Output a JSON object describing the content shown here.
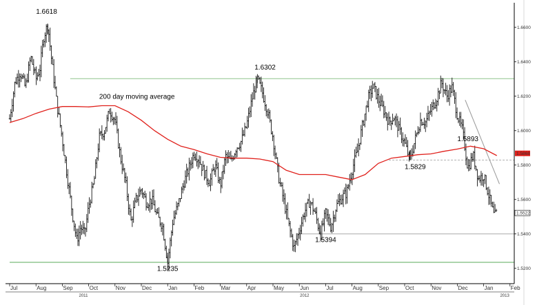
{
  "chart_data": {
    "type": "line",
    "title": "",
    "xlabel": "",
    "ylabel": "",
    "ylim": [
      1.5135,
      1.6735
    ],
    "grid": false,
    "y_ticks": [
      {
        "value": 1.66,
        "label": "1.6600"
      },
      {
        "value": 1.64,
        "label": "1.6400"
      },
      {
        "value": 1.62,
        "label": "1.6200"
      },
      {
        "value": 1.6,
        "label": "1.6000"
      },
      {
        "value": 1.58,
        "label": "1.5800"
      },
      {
        "value": 1.56,
        "label": "1.5600"
      },
      {
        "value": 1.54,
        "label": "1.5400"
      },
      {
        "value": 1.52,
        "label": "1.5200"
      }
    ],
    "months": [
      "Jul",
      "Aug",
      "Sep",
      "Oct",
      "Nov",
      "Dec",
      "Jan",
      "Feb",
      "Mar",
      "Apr",
      "May",
      "Jun",
      "Jul",
      "Aug",
      "Sep",
      "Oct",
      "Nov",
      "Dec",
      "Jan",
      "Feb"
    ],
    "years": [
      {
        "label": "2011",
        "month_index": 2.8
      },
      {
        "label": "2012",
        "month_index": 11.2
      },
      {
        "label": "2013",
        "month_index": 18.8
      }
    ],
    "series": [
      {
        "name": "",
        "kind": "ohlc",
        "color": "#000000",
        "anchors": [
          {
            "m": 0.0,
            "v": 1.607
          },
          {
            "m": 0.2,
            "v": 1.628
          },
          {
            "m": 0.4,
            "v": 1.634
          },
          {
            "m": 0.6,
            "v": 1.625
          },
          {
            "m": 0.8,
            "v": 1.643
          },
          {
            "m": 1.0,
            "v": 1.63
          },
          {
            "m": 1.15,
            "v": 1.636
          },
          {
            "m": 1.3,
            "v": 1.655
          },
          {
            "m": 1.45,
            "v": 1.6618
          },
          {
            "m": 1.6,
            "v": 1.64
          },
          {
            "m": 1.8,
            "v": 1.615
          },
          {
            "m": 2.0,
            "v": 1.595
          },
          {
            "m": 2.2,
            "v": 1.572
          },
          {
            "m": 2.4,
            "v": 1.55
          },
          {
            "m": 2.55,
            "v": 1.536
          },
          {
            "m": 2.7,
            "v": 1.544
          },
          {
            "m": 2.85,
            "v": 1.54
          },
          {
            "m": 3.0,
            "v": 1.556
          },
          {
            "m": 3.2,
            "v": 1.57
          },
          {
            "m": 3.4,
            "v": 1.596
          },
          {
            "m": 3.6,
            "v": 1.6
          },
          {
            "m": 3.8,
            "v": 1.612
          },
          {
            "m": 4.0,
            "v": 1.606
          },
          {
            "m": 4.2,
            "v": 1.585
          },
          {
            "m": 4.4,
            "v": 1.57
          },
          {
            "m": 4.6,
            "v": 1.547
          },
          {
            "m": 4.8,
            "v": 1.56
          },
          {
            "m": 5.0,
            "v": 1.566
          },
          {
            "m": 5.2,
            "v": 1.558
          },
          {
            "m": 5.4,
            "v": 1.56
          },
          {
            "m": 5.6,
            "v": 1.55
          },
          {
            "m": 5.8,
            "v": 1.545
          },
          {
            "m": 6.0,
            "v": 1.5235
          },
          {
            "m": 6.2,
            "v": 1.548
          },
          {
            "m": 6.4,
            "v": 1.557
          },
          {
            "m": 6.6,
            "v": 1.569
          },
          {
            "m": 6.8,
            "v": 1.578
          },
          {
            "m": 7.0,
            "v": 1.587
          },
          {
            "m": 7.2,
            "v": 1.583
          },
          {
            "m": 7.4,
            "v": 1.575
          },
          {
            "m": 7.6,
            "v": 1.57
          },
          {
            "m": 7.8,
            "v": 1.58
          },
          {
            "m": 8.0,
            "v": 1.568
          },
          {
            "m": 8.2,
            "v": 1.585
          },
          {
            "m": 8.4,
            "v": 1.582
          },
          {
            "m": 8.6,
            "v": 1.59
          },
          {
            "m": 8.8,
            "v": 1.594
          },
          {
            "m": 9.0,
            "v": 1.603
          },
          {
            "m": 9.2,
            "v": 1.618
          },
          {
            "m": 9.4,
            "v": 1.6302
          },
          {
            "m": 9.6,
            "v": 1.622
          },
          {
            "m": 9.8,
            "v": 1.611
          },
          {
            "m": 10.0,
            "v": 1.596
          },
          {
            "m": 10.2,
            "v": 1.574
          },
          {
            "m": 10.4,
            "v": 1.56
          },
          {
            "m": 10.6,
            "v": 1.545
          },
          {
            "m": 10.8,
            "v": 1.532
          },
          {
            "m": 11.0,
            "v": 1.542
          },
          {
            "m": 11.2,
            "v": 1.553
          },
          {
            "m": 11.4,
            "v": 1.559
          },
          {
            "m": 11.6,
            "v": 1.552
          },
          {
            "m": 11.8,
            "v": 1.5394
          },
          {
            "m": 12.0,
            "v": 1.552
          },
          {
            "m": 12.2,
            "v": 1.544
          },
          {
            "m": 12.4,
            "v": 1.556
          },
          {
            "m": 12.6,
            "v": 1.561
          },
          {
            "m": 12.8,
            "v": 1.564
          },
          {
            "m": 13.0,
            "v": 1.577
          },
          {
            "m": 13.2,
            "v": 1.588
          },
          {
            "m": 13.4,
            "v": 1.603
          },
          {
            "m": 13.6,
            "v": 1.618
          },
          {
            "m": 13.8,
            "v": 1.626
          },
          {
            "m": 14.0,
            "v": 1.618
          },
          {
            "m": 14.2,
            "v": 1.612
          },
          {
            "m": 14.4,
            "v": 1.605
          },
          {
            "m": 14.6,
            "v": 1.608
          },
          {
            "m": 14.8,
            "v": 1.6
          },
          {
            "m": 15.0,
            "v": 1.593
          },
          {
            "m": 15.2,
            "v": 1.5829
          },
          {
            "m": 15.4,
            "v": 1.595
          },
          {
            "m": 15.6,
            "v": 1.606
          },
          {
            "m": 15.8,
            "v": 1.605
          },
          {
            "m": 16.0,
            "v": 1.612
          },
          {
            "m": 16.2,
            "v": 1.618
          },
          {
            "m": 16.4,
            "v": 1.628
          },
          {
            "m": 16.6,
            "v": 1.62
          },
          {
            "m": 16.8,
            "v": 1.625
          },
          {
            "m": 17.0,
            "v": 1.609
          },
          {
            "m": 17.2,
            "v": 1.6
          },
          {
            "m": 17.4,
            "v": 1.578
          },
          {
            "m": 17.6,
            "v": 1.586
          },
          {
            "m": 17.8,
            "v": 1.572
          },
          {
            "m": 18.0,
            "v": 1.574
          },
          {
            "m": 18.2,
            "v": 1.562
          },
          {
            "m": 18.4,
            "v": 1.55
          },
          {
            "m": 18.5,
            "v": 1.5522
          }
        ]
      },
      {
        "name": "200 day moving average",
        "kind": "line",
        "color": "#e0201b",
        "points": [
          {
            "m": 0.0,
            "v": 1.6047
          },
          {
            "m": 0.5,
            "v": 1.607
          },
          {
            "m": 1.0,
            "v": 1.61
          },
          {
            "m": 1.5,
            "v": 1.6125
          },
          {
            "m": 2.0,
            "v": 1.614
          },
          {
            "m": 2.5,
            "v": 1.614
          },
          {
            "m": 3.0,
            "v": 1.6138
          },
          {
            "m": 3.5,
            "v": 1.6145
          },
          {
            "m": 4.0,
            "v": 1.6145
          },
          {
            "m": 4.5,
            "v": 1.611
          },
          {
            "m": 5.0,
            "v": 1.606
          },
          {
            "m": 5.5,
            "v": 1.6
          },
          {
            "m": 6.0,
            "v": 1.595
          },
          {
            "m": 6.5,
            "v": 1.591
          },
          {
            "m": 7.0,
            "v": 1.589
          },
          {
            "m": 7.5,
            "v": 1.5865
          },
          {
            "m": 8.0,
            "v": 1.5845
          },
          {
            "m": 8.5,
            "v": 1.584
          },
          {
            "m": 9.0,
            "v": 1.584
          },
          {
            "m": 9.5,
            "v": 1.5835
          },
          {
            "m": 10.0,
            "v": 1.582
          },
          {
            "m": 10.5,
            "v": 1.577
          },
          {
            "m": 11.0,
            "v": 1.5745
          },
          {
            "m": 11.5,
            "v": 1.5745
          },
          {
            "m": 12.0,
            "v": 1.5745
          },
          {
            "m": 12.5,
            "v": 1.573
          },
          {
            "m": 13.0,
            "v": 1.5715
          },
          {
            "m": 13.5,
            "v": 1.5745
          },
          {
            "m": 14.0,
            "v": 1.581
          },
          {
            "m": 14.5,
            "v": 1.584
          },
          {
            "m": 15.0,
            "v": 1.585
          },
          {
            "m": 15.5,
            "v": 1.586
          },
          {
            "m": 16.0,
            "v": 1.5865
          },
          {
            "m": 16.5,
            "v": 1.588
          },
          {
            "m": 17.0,
            "v": 1.5893
          },
          {
            "m": 17.5,
            "v": 1.591
          },
          {
            "m": 18.0,
            "v": 1.5895
          },
          {
            "m": 18.5,
            "v": 1.5855
          }
        ]
      }
    ],
    "reference_lines": [
      {
        "kind": "horizontal",
        "value": 1.6302,
        "from_m": 2.3,
        "to_m": 19.2,
        "color": "#8fc48b"
      },
      {
        "kind": "horizontal",
        "value": 1.5235,
        "from_m": 0.0,
        "to_m": 19.2,
        "color": "#5aa85a"
      },
      {
        "kind": "horizontal",
        "value": 1.54,
        "from_m": 11.0,
        "to_m": 19.2,
        "color": "#a9a9a9"
      },
      {
        "kind": "horizontal_dashed",
        "value": 1.5829,
        "from_m": 14.4,
        "to_m": 19.2,
        "color": "#b0b0b0"
      },
      {
        "kind": "trendline",
        "from": {
          "m": 17.3,
          "v": 1.6178
        },
        "to": {
          "m": 18.6,
          "v": 1.569
        },
        "color": "#999999"
      }
    ],
    "annotations": [
      {
        "text": "1.6618",
        "m": 1.0,
        "v": 1.668,
        "color": "#000000"
      },
      {
        "text": "1.6302",
        "m": 9.3,
        "v": 1.6355,
        "color": "#000000"
      },
      {
        "text": "200 day moving average",
        "m": 3.4,
        "v": 1.6185,
        "color": "#e0201b"
      },
      {
        "text": "1.5893",
        "m": 17.0,
        "v": 1.594,
        "color": "#000000"
      },
      {
        "text": "1.5829",
        "m": 15.0,
        "v": 1.5778,
        "color": "#000000"
      },
      {
        "text": "1.5394",
        "m": 11.6,
        "v": 1.5353,
        "color": "#000000"
      },
      {
        "text": "1.5235",
        "m": 5.6,
        "v": 1.5186,
        "color": "#000000"
      }
    ],
    "price_markers": [
      {
        "label": "1.5868",
        "value": 1.5868,
        "style": "red"
      },
      {
        "label": "1.5522",
        "value": 1.5522,
        "style": "outline"
      }
    ]
  }
}
